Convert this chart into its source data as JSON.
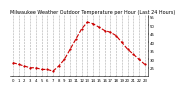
{
  "title": "Milwaukee Weather Outdoor Temperature per Hour (Last 24 Hours)",
  "hours": [
    0,
    1,
    2,
    3,
    4,
    5,
    6,
    7,
    8,
    9,
    10,
    11,
    12,
    13,
    14,
    15,
    16,
    17,
    18,
    19,
    20,
    21,
    22,
    23
  ],
  "temps": [
    28,
    27,
    26,
    25,
    25,
    24,
    24,
    23,
    26,
    30,
    36,
    42,
    48,
    52,
    51,
    49,
    47,
    46,
    44,
    40,
    36,
    33,
    30,
    27
  ],
  "line_color": "#cc0000",
  "marker": "o",
  "marker_size": 1.2,
  "line_style": "--",
  "line_width": 0.8,
  "grid_color": "#aaaaaa",
  "grid_style": "--",
  "bg_color": "#ffffff",
  "ylim": [
    20,
    56
  ],
  "yticks": [
    25,
    30,
    35,
    40,
    45,
    50,
    55
  ],
  "title_fontsize": 3.5,
  "tick_fontsize": 2.8
}
